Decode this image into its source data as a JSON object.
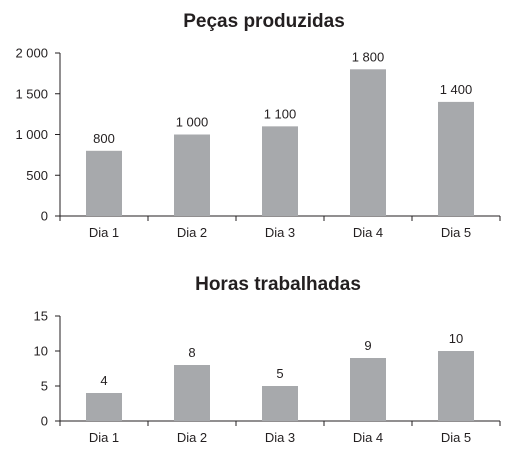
{
  "chart_data": [
    {
      "type": "bar",
      "title": "Peças produzidas",
      "categories": [
        "Dia 1",
        "Dia 2",
        "Dia 3",
        "Dia 4",
        "Dia 5"
      ],
      "values": [
        800,
        1000,
        1100,
        1800,
        1400
      ],
      "value_labels": [
        "800",
        "1 000",
        "1 100",
        "1 800",
        "1 400"
      ],
      "ylim": [
        0,
        2000
      ],
      "yticks": [
        0,
        500,
        1000,
        1500,
        2000
      ],
      "ytick_labels": [
        "0",
        "500",
        "1 000",
        "1 500",
        "2 000"
      ],
      "xlabel": "",
      "ylabel": "",
      "grid": false,
      "bar_color": "#a7a9ac"
    },
    {
      "type": "bar",
      "title": "Horas trabalhadas",
      "categories": [
        "Dia 1",
        "Dia 2",
        "Dia 3",
        "Dia 4",
        "Dia 5"
      ],
      "values": [
        4,
        8,
        5,
        9,
        10
      ],
      "value_labels": [
        "4",
        "8",
        "5",
        "9",
        "10"
      ],
      "ylim": [
        0,
        15
      ],
      "yticks": [
        0,
        5,
        10,
        15
      ],
      "ytick_labels": [
        "0",
        "5",
        "10",
        "15"
      ],
      "xlabel": "",
      "ylabel": "",
      "grid": false,
      "bar_color": "#a7a9ac"
    }
  ]
}
